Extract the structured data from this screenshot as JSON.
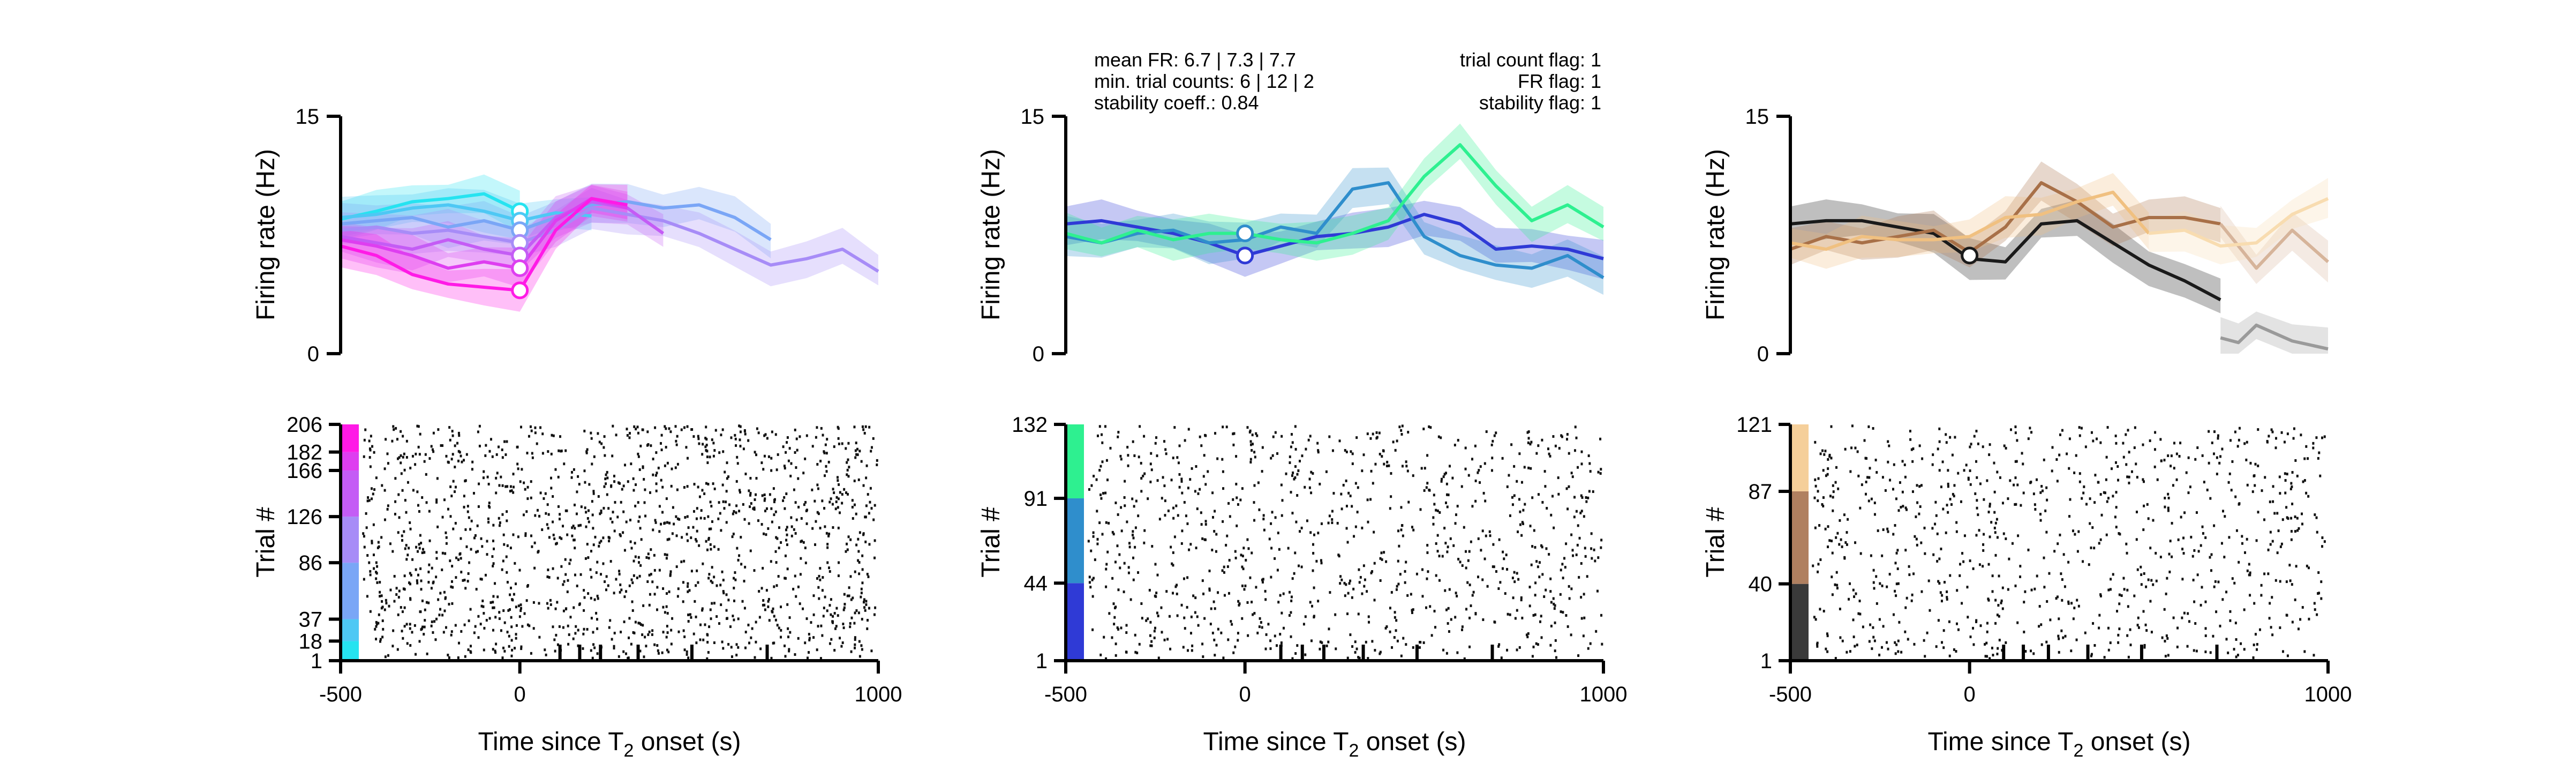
{
  "chart_data": [
    {
      "type": "line",
      "panel": "top-left",
      "ylabel": "Firing rate (Hz)",
      "ylim": [
        0,
        15
      ],
      "yticks": [
        "0",
        "15"
      ],
      "xlim": [
        -500,
        1000
      ],
      "series": [
        {
          "color": "#26e3f0",
          "x": [
            -500,
            -400,
            -300,
            -200,
            -100,
            0
          ],
          "y": [
            8.5,
            9.0,
            9.6,
            9.8,
            10.1,
            9.0
          ]
        },
        {
          "color": "#4ec8f4",
          "x": [
            -500,
            -400,
            -300,
            -200,
            -100,
            0,
            100,
            200
          ],
          "y": [
            8.6,
            8.8,
            9.2,
            9.4,
            9.0,
            8.4,
            8.9,
            8.7
          ]
        },
        {
          "color": "#7aa6f6",
          "x": [
            -500,
            -400,
            -300,
            -200,
            -100,
            0,
            100,
            200,
            300,
            400,
            500,
            600,
            700
          ],
          "y": [
            8.2,
            8.4,
            8.6,
            8.0,
            8.4,
            7.8,
            8.6,
            9.4,
            9.6,
            9.2,
            9.4,
            8.6,
            7.2
          ]
        },
        {
          "color": "#a78cf7",
          "x": [
            -500,
            -400,
            -300,
            -200,
            -100,
            0,
            100,
            200,
            300,
            400,
            500,
            600,
            700,
            800,
            900,
            1000
          ],
          "y": [
            7.8,
            8.0,
            7.6,
            7.8,
            7.4,
            7.0,
            7.8,
            9.2,
            8.8,
            8.4,
            7.6,
            6.6,
            5.6,
            6.0,
            6.6,
            5.2
          ]
        },
        {
          "color": "#c45cf5",
          "x": [
            -500,
            -400,
            -300,
            -200,
            -100,
            0,
            100,
            200,
            300,
            400
          ],
          "y": [
            7.4,
            7.0,
            6.6,
            7.2,
            6.6,
            6.2,
            8.6,
            9.6,
            9.2,
            7.6
          ]
        },
        {
          "color": "#de3ef0",
          "x": [
            -500,
            -400,
            -300,
            -200,
            -100,
            0,
            100,
            200,
            300
          ],
          "y": [
            7.2,
            6.8,
            6.2,
            5.4,
            5.8,
            5.4,
            8.4,
            9.8,
            9.2
          ]
        },
        {
          "color": "#ff1ae6",
          "x": [
            -500,
            -400,
            -300,
            -200,
            -100,
            0,
            100,
            200,
            300
          ],
          "y": [
            6.8,
            6.2,
            5.0,
            4.4,
            4.2,
            4.0,
            7.8,
            9.8,
            9.4
          ]
        }
      ],
      "markers": [
        9.0,
        8.4,
        7.8,
        7.0,
        6.2,
        5.4,
        4.0
      ],
      "raster": {
        "ylabel": "Trial #",
        "yticks": [
          "1",
          "18",
          "37",
          "86",
          "126",
          "166",
          "182",
          "206"
        ],
        "ytick_values": [
          1,
          18,
          37,
          86,
          126,
          166,
          182,
          206
        ],
        "ymax": 206,
        "xlabel_prefix": "Time since T",
        "xlabel_sub": "2",
        "xlabel_suffix": " onset (s)",
        "xticks": [
          "-500",
          "0",
          "1000"
        ],
        "xtick_values": [
          -500,
          0,
          1000
        ],
        "minor_ticks": [
          112,
          167,
          225,
          330,
          480,
          690
        ],
        "color_strips": [
          {
            "from": 1,
            "to": 18,
            "color": "#26e3f0"
          },
          {
            "from": 18,
            "to": 37,
            "color": "#4ec8f4"
          },
          {
            "from": 37,
            "to": 86,
            "color": "#7aa6f6"
          },
          {
            "from": 86,
            "to": 126,
            "color": "#a78cf7"
          },
          {
            "from": 126,
            "to": 166,
            "color": "#c45cf5"
          },
          {
            "from": 166,
            "to": 182,
            "color": "#de3ef0"
          },
          {
            "from": 182,
            "to": 206,
            "color": "#ff1ae6"
          }
        ]
      }
    },
    {
      "type": "line",
      "panel": "top-center",
      "ylabel": "Firing rate (Hz)",
      "ylim": [
        0,
        15
      ],
      "yticks": [
        "0",
        "15"
      ],
      "xlim": [
        -500,
        1000
      ],
      "annotations_left": [
        "mean FR: 6.7 | 7.3 | 7.7",
        "min. trial counts: 6 | 12 | 2",
        "stability coeff.: 0.84"
      ],
      "annotations_right": [
        "trial count flag: 1",
        "FR flag: 1",
        "stability flag: 1"
      ],
      "series": [
        {
          "color": "#2f3ad6",
          "x": [
            -500,
            -400,
            -300,
            -200,
            -100,
            0,
            100,
            200,
            300,
            400,
            500,
            600,
            700,
            800,
            900,
            1000
          ],
          "y": [
            8.2,
            8.4,
            8.0,
            7.6,
            7.0,
            6.2,
            6.8,
            7.4,
            7.6,
            8.0,
            8.8,
            8.2,
            6.6,
            6.8,
            6.6,
            6.0
          ]
        },
        {
          "color": "#2f8ecc",
          "x": [
            -500,
            -400,
            -300,
            -200,
            -100,
            0,
            100,
            200,
            300,
            400,
            500,
            600,
            700,
            800,
            900,
            1000
          ],
          "y": [
            7.4,
            7.0,
            7.6,
            7.8,
            7.0,
            7.2,
            8.0,
            7.6,
            10.4,
            10.8,
            7.4,
            6.2,
            5.6,
            5.4,
            6.2,
            4.8
          ]
        },
        {
          "color": "#2ef090",
          "x": [
            -500,
            -400,
            -300,
            -200,
            -100,
            0,
            100,
            200,
            300,
            400,
            500,
            600,
            700,
            800,
            900,
            1000
          ],
          "y": [
            7.6,
            7.0,
            7.8,
            7.2,
            7.6,
            7.6,
            7.2,
            7.0,
            7.6,
            8.4,
            11.2,
            13.2,
            10.6,
            8.4,
            9.4,
            8.0
          ]
        }
      ],
      "markers": [
        6.2,
        7.6
      ],
      "raster": {
        "ylabel": "Trial #",
        "yticks": [
          "1",
          "44",
          "91",
          "132"
        ],
        "ytick_values": [
          1,
          44,
          91,
          132
        ],
        "ymax": 132,
        "xlabel_prefix": "Time since T",
        "xlabel_sub": "2",
        "xlabel_suffix": " onset (s)",
        "xticks": [
          "-500",
          "0",
          "1000"
        ],
        "xtick_values": [
          -500,
          0,
          1000
        ],
        "minor_ticks": [
          100,
          160,
          220,
          330,
          480,
          690
        ],
        "color_strips": [
          {
            "from": 1,
            "to": 44,
            "color": "#2f3ad6"
          },
          {
            "from": 44,
            "to": 91,
            "color": "#2f8ecc"
          },
          {
            "from": 91,
            "to": 132,
            "color": "#2ef090"
          }
        ]
      }
    },
    {
      "type": "line",
      "panel": "top-right",
      "ylabel": "Firing rate (Hz)",
      "ylim": [
        0,
        15
      ],
      "yticks": [
        "0",
        "15"
      ],
      "xlim": [
        -500,
        1000
      ],
      "series": [
        {
          "color": "#1a1a1a",
          "x": [
            -500,
            -400,
            -300,
            -200,
            -100,
            0,
            100,
            200,
            300,
            400,
            500,
            600,
            700
          ],
          "y": [
            8.2,
            8.4,
            8.4,
            8.0,
            7.6,
            6.0,
            5.8,
            8.2,
            8.4,
            7.0,
            5.6,
            4.6,
            3.4
          ]
        },
        {
          "color": "#9a9a9a",
          "x": [
            700,
            750,
            800,
            900,
            1000
          ],
          "y": [
            1.0,
            0.7,
            1.8,
            0.8,
            0.3
          ]
        },
        {
          "color": "#a87048",
          "x": [
            -500,
            -400,
            -300,
            -200,
            -100,
            0,
            100,
            200,
            300,
            400,
            500,
            600,
            700
          ],
          "y": [
            6.6,
            7.4,
            7.0,
            7.4,
            7.8,
            6.4,
            8.0,
            10.8,
            9.6,
            8.0,
            8.6,
            8.6,
            8.2
          ]
        },
        {
          "color": "#d6b49a",
          "x": [
            700,
            800,
            900,
            1000
          ],
          "y": [
            8.2,
            5.4,
            7.8,
            5.8
          ]
        },
        {
          "color": "#f0c080",
          "x": [
            -500,
            -400,
            -300,
            -200,
            -100,
            0,
            100,
            200,
            300,
            400,
            500
          ],
          "y": [
            7.0,
            6.6,
            7.4,
            7.2,
            7.2,
            7.4,
            8.6,
            8.8,
            9.6,
            10.2,
            7.6
          ]
        },
        {
          "color": "#f8dcb0",
          "x": [
            500,
            600,
            700,
            800,
            900,
            1000
          ],
          "y": [
            7.6,
            7.8,
            6.8,
            7.0,
            8.8,
            9.8
          ]
        }
      ],
      "markers": [
        6.2
      ],
      "raster": {
        "ylabel": "Trial #",
        "yticks": [
          "1",
          "40",
          "87",
          "121"
        ],
        "ytick_values": [
          1,
          40,
          87,
          121
        ],
        "ymax": 121,
        "xlabel_prefix": "Time since T",
        "xlabel_sub": "2",
        "xlabel_suffix": " onset (s)",
        "xticks": [
          "-500",
          "0",
          "1000"
        ],
        "xtick_values": [
          -500,
          0,
          1000
        ],
        "minor_ticks": [
          95,
          150,
          220,
          330,
          480,
          690
        ],
        "color_strips": [
          {
            "from": 1,
            "to": 40,
            "color": "#3a3a3a"
          },
          {
            "from": 40,
            "to": 87,
            "color": "#b08060"
          },
          {
            "from": 87,
            "to": 121,
            "color": "#f5cf9a"
          }
        ]
      }
    }
  ]
}
